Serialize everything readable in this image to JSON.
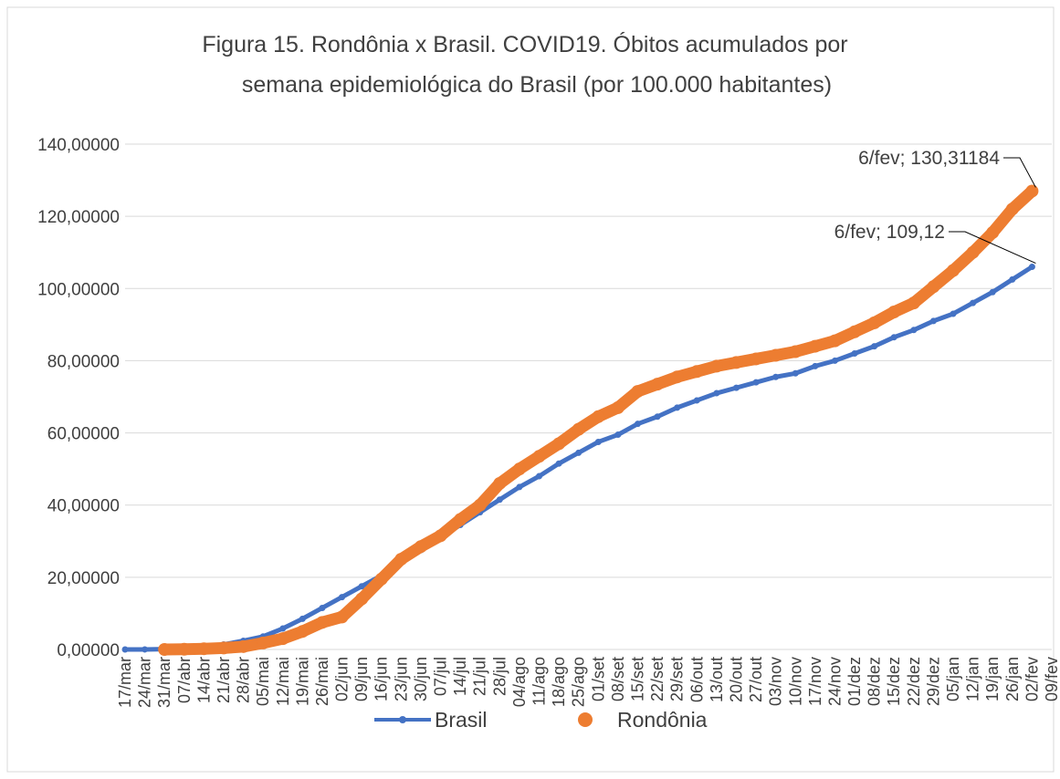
{
  "chart_data": {
    "type": "line",
    "title": [
      "Figura 15. Rondônia x Brasil. COVID19. Óbitos acumulados por",
      "semana epidemiológica do Brasil (por 100.000 habitantes)"
    ],
    "categories": [
      "17/mar",
      "24/mar",
      "31/mar",
      "07/abr",
      "14/abr",
      "21/abr",
      "28/abr",
      "05/mai",
      "12/mai",
      "19/mai",
      "26/mai",
      "02/jun",
      "09/jun",
      "16/jun",
      "23/jun",
      "30/jun",
      "07/jul",
      "14/jul",
      "21/jul",
      "28/jul",
      "04/ago",
      "11/ago",
      "18/ago",
      "25/ago",
      "01/set",
      "08/set",
      "15/set",
      "22/set",
      "29/set",
      "06/out",
      "13/out",
      "20/out",
      "27/out",
      "03/nov",
      "10/nov",
      "17/nov",
      "24/nov",
      "01/dez",
      "08/dez",
      "15/dez",
      "22/dez",
      "29/dez",
      "05/jan",
      "12/jan",
      "19/jan",
      "26/jan",
      "02/fev",
      "09/fev"
    ],
    "series": [
      {
        "name": "Brasil",
        "color": "#4472c4",
        "values": [
          0,
          0.01,
          0.1,
          0.3,
          0.8,
          1.4,
          2.4,
          3.6,
          5.8,
          8.5,
          11.5,
          14.5,
          17.5,
          20.5,
          24.5,
          27.5,
          31,
          34.5,
          38,
          41.5,
          45,
          48,
          51.5,
          54.5,
          57.5,
          59.5,
          62.5,
          64.5,
          67,
          69,
          71,
          72.5,
          74,
          75.5,
          76.5,
          78.5,
          80,
          82,
          84,
          86.5,
          88.5,
          91,
          93,
          96,
          99,
          102.5,
          106,
          null
        ]
      },
      {
        "name": "Rondônia",
        "color": "#ed7d31",
        "values": [
          null,
          null,
          0,
          0.05,
          0.2,
          0.4,
          0.8,
          1.8,
          3,
          5,
          7.5,
          9,
          14,
          19.5,
          25,
          28.5,
          31.5,
          36,
          40,
          46,
          50,
          53.5,
          57,
          61,
          64.5,
          67,
          71.5,
          73.5,
          75.5,
          77,
          78.5,
          79.5,
          80.5,
          81.5,
          82.5,
          84,
          85.5,
          88,
          90.5,
          93.5,
          96,
          100.5,
          105,
          110,
          115.5,
          122,
          127,
          null
        ]
      }
    ],
    "annotations": [
      "6/fev; 130,31184",
      "6/fev; 109,12"
    ],
    "ylim": [
      0,
      140
    ],
    "yticks": [
      {
        "value": 0,
        "label": "0,00000"
      },
      {
        "value": 20,
        "label": "20,00000"
      },
      {
        "value": 40,
        "label": "40,00000"
      },
      {
        "value": 60,
        "label": "60,00000"
      },
      {
        "value": 80,
        "label": "80,00000"
      },
      {
        "value": 100,
        "label": "100,00000"
      },
      {
        "value": 120,
        "label": "120,00000"
      },
      {
        "value": 140,
        "label": "140,00000"
      }
    ],
    "grid": true,
    "legend": "bottom"
  }
}
